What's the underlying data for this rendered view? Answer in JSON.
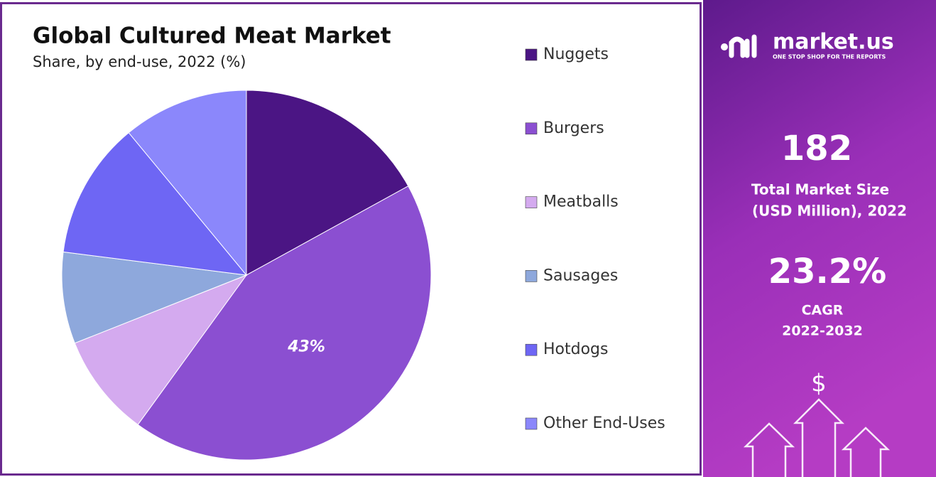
{
  "chart_data": {
    "type": "pie",
    "title": "Global Cultured Meat Market",
    "subtitle": "Share, by end-use, 2022 (%)",
    "categories": [
      "Nuggets",
      "Burgers",
      "Meatballs",
      "Sausages",
      "Hotdogs",
      "Other End-Uses"
    ],
    "values": [
      17,
      43,
      9,
      8,
      12,
      11
    ],
    "value_labels": [
      null,
      "43%",
      null,
      null,
      null,
      null
    ],
    "colors": [
      "#4b1584",
      "#8b4fd1",
      "#d4aaef",
      "#8ea8dc",
      "#6e66f4",
      "#8b87fb"
    ],
    "legend": "right"
  },
  "sidebar": {
    "brand": "market.us",
    "tagline": "ONE STOP SHOP FOR THE REPORTS",
    "market_size": "182",
    "market_size_label": [
      "Total Market Size",
      "(USD Million), 2022"
    ],
    "cagr": "23.2%",
    "cagr_label": [
      "CAGR",
      "2022-2032"
    ],
    "icon": "$"
  }
}
